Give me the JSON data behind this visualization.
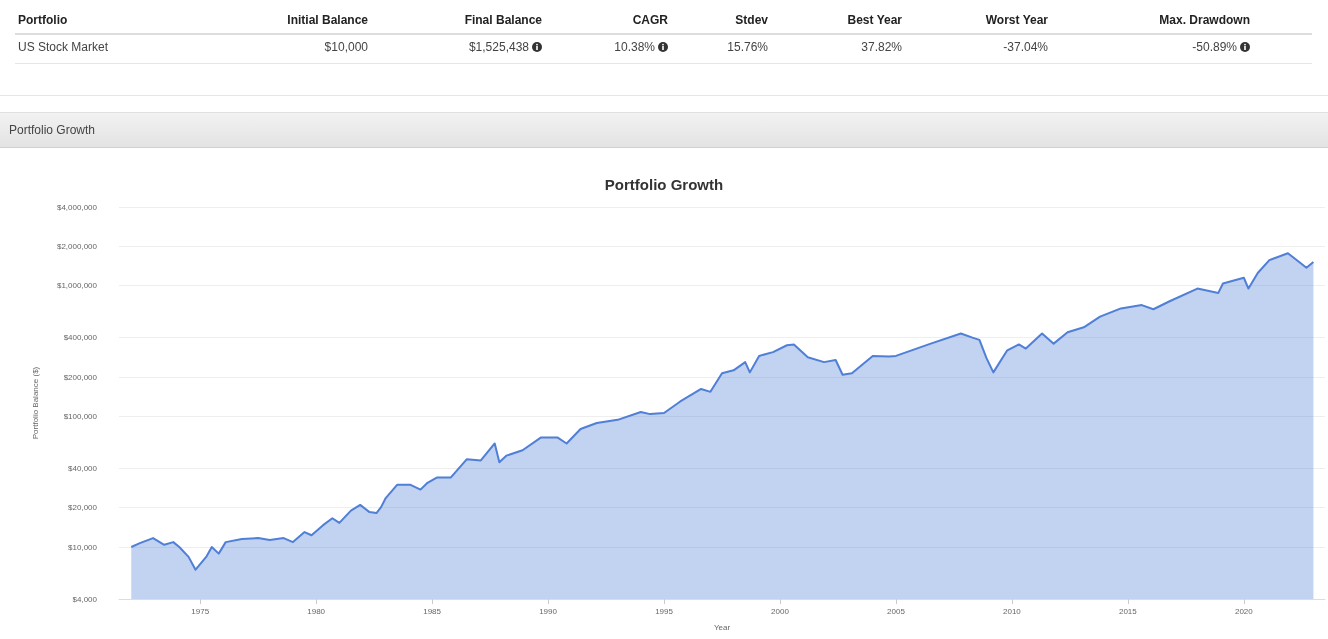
{
  "chart_data": [
    {
      "type": "other",
      "ylabel": "Portfolio",
      "categories": [
        "Initial Balance",
        "Final Balance",
        "CAGR",
        "Stdev",
        "Best Year",
        "Worst Year",
        "Max. Drawdown"
      ],
      "y_categories": [
        "US Stock Market"
      ],
      "cell_labels": [
        [
          "$10,000",
          "$1,525,438",
          "10.38%",
          "15.76%",
          "37.82%",
          "-37.04%",
          "-50.89%"
        ]
      ]
    },
    {
      "type": "area",
      "title": "Portfolio Growth",
      "xlabel": "Year",
      "ylabel": "Portfolio Balance ($)",
      "annotations": [
        "Portfolio Growth"
      ],
      "x": [
        1972.03,
        1972.4,
        1972.97,
        1973.45,
        1973.84,
        1974.1,
        1974.5,
        1974.8,
        1974.9,
        1975.26,
        1975.5,
        1975.8,
        1976.1,
        1976.8,
        1977.5,
        1978.0,
        1978.6,
        1979.0,
        1979.5,
        1979.8,
        1980.3,
        1980.7,
        1981.0,
        1981.5,
        1981.9,
        1982.3,
        1982.6,
        1982.8,
        1983.0,
        1983.5,
        1984.05,
        1984.5,
        1984.8,
        1985.2,
        1985.8,
        1986.5,
        1987.1,
        1987.7,
        1987.9,
        1988.2,
        1988.9,
        1989.7,
        1990.4,
        1990.8,
        1991.4,
        1992.1,
        1993.0,
        1994.0,
        1994.4,
        1995.0,
        1995.7,
        1996.6,
        1997.0,
        1997.5,
        1998.0,
        1998.5,
        1998.7,
        1999.1,
        1999.7,
        2000.3,
        2000.6,
        2001.2,
        2001.9,
        2002.4,
        2002.7,
        2003.1,
        2004.0,
        2004.7,
        2005.0,
        2006.5,
        2007.8,
        2008.3,
        2008.6,
        2008.9,
        2009.2,
        2009.8,
        2010.3,
        2010.6,
        2011.3,
        2011.8,
        2012.4,
        2013.1,
        2013.8,
        2014.7,
        2015.6,
        2016.1,
        2016.8,
        2018.0,
        2018.9,
        2019.1,
        2020.0,
        2020.2,
        2020.6,
        2021.1,
        2021.9,
        2022.4,
        2022.7,
        2023.0
      ],
      "series": [
        {
          "color": "#4f7fd6",
          "values": [
            10000,
            10700,
            11700,
            10400,
            10900,
            10000,
            8400,
            6700,
            7050,
            8400,
            10000,
            8900,
            10900,
            11500,
            11700,
            11300,
            11700,
            10900,
            13000,
            12300,
            14700,
            16600,
            15300,
            19000,
            21000,
            18500,
            18200,
            20200,
            23700,
            30000,
            30000,
            27500,
            31000,
            34000,
            34000,
            47000,
            46000,
            62000,
            44500,
            50000,
            55000,
            69000,
            69000,
            62000,
            80000,
            89000,
            94000,
            108000,
            104000,
            106000,
            130000,
            162000,
            154000,
            214000,
            225000,
            260000,
            217000,
            290000,
            310000,
            350000,
            355000,
            283000,
            260000,
            270000,
            208000,
            214000,
            290000,
            287000,
            290000,
            360000,
            430000,
            400000,
            385000,
            280000,
            217000,
            320000,
            355000,
            330000,
            430000,
            360000,
            440000,
            480000,
            580000,
            670000,
            710000,
            660000,
            760000,
            950000,
            880000,
            1040000,
            1150000,
            950000,
            1250000,
            1570000,
            1770000,
            1510000,
            1370000,
            1520000
          ]
        }
      ],
      "xlim": [
        1971.5,
        2023.5
      ],
      "xticks": [
        1975,
        1980,
        1985,
        1990,
        1995,
        2000,
        2005,
        2010,
        2015,
        2020
      ],
      "log": "y",
      "ylim": [
        4000,
        4000000
      ],
      "yticks": [
        {
          "value": 4000,
          "label": "$4,000"
        },
        {
          "value": 10000,
          "label": "$10,000"
        },
        {
          "value": 20000,
          "label": "$20,000"
        },
        {
          "value": 40000,
          "label": "$40,000"
        },
        {
          "value": 100000,
          "label": "$100,000"
        },
        {
          "value": 200000,
          "label": "$200,000"
        },
        {
          "value": 400000,
          "label": "$400,000"
        },
        {
          "value": 1000000,
          "label": "$1,000,000"
        },
        {
          "value": 2000000,
          "label": "$2,000,000"
        },
        {
          "value": 4000000,
          "label": "$4,000,000"
        }
      ],
      "grid": "y"
    }
  ]
}
